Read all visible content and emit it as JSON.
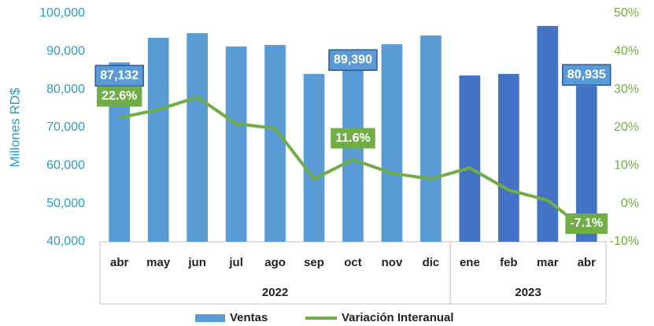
{
  "chart_data": {
    "type": "bar-line",
    "y_label": "Millones RD$",
    "category_groups": [
      {
        "name": "2022",
        "categories": [
          "abr",
          "may",
          "jun",
          "jul",
          "ago",
          "sep",
          "oct",
          "nov",
          "dic"
        ],
        "color": "#5b9bd5"
      },
      {
        "name": "2023",
        "categories": [
          "ene",
          "feb",
          "mar",
          "abr"
        ],
        "color": "#4472c4"
      }
    ],
    "series": [
      {
        "name": "Ventas",
        "type": "bar",
        "color": "#5b9bd5",
        "values": [
          87132,
          93600,
          94800,
          91300,
          91700,
          84100,
          89390,
          91900,
          94200,
          83700,
          84100,
          96700,
          80935
        ],
        "value_labels": [
          "87,132",
          null,
          null,
          null,
          null,
          null,
          "89,390",
          null,
          null,
          null,
          null,
          null,
          "80,935"
        ]
      },
      {
        "name": "Variación Interanual",
        "type": "line",
        "axis": "y2",
        "color": "#70ad47",
        "values": [
          22.6,
          24.7,
          28.0,
          21.0,
          19.8,
          6.5,
          11.6,
          8.0,
          6.5,
          9.4,
          3.6,
          0.9,
          -7.1
        ],
        "value_labels": [
          "22.6%",
          null,
          null,
          null,
          null,
          null,
          "11.6%",
          null,
          null,
          null,
          null,
          null,
          "-7.1%"
        ]
      }
    ],
    "ylim": [
      40000,
      100000
    ],
    "yticks": [
      {
        "value": 40000,
        "label": "40,000"
      },
      {
        "value": 50000,
        "label": "50,000"
      },
      {
        "value": 60000,
        "label": "60,000"
      },
      {
        "value": 70000,
        "label": "70,000"
      },
      {
        "value": 80000,
        "label": "80,000"
      },
      {
        "value": 90000,
        "label": "90,000"
      },
      {
        "value": 100000,
        "label": "100,000"
      }
    ],
    "y2lim": [
      -10,
      50
    ],
    "y2ticks": [
      {
        "value": -10,
        "label": "-10%"
      },
      {
        "value": 0,
        "label": "0%"
      },
      {
        "value": 10,
        "label": "10%"
      },
      {
        "value": 20,
        "label": "20%"
      },
      {
        "value": 30,
        "label": "30%"
      },
      {
        "value": 40,
        "label": "40%"
      },
      {
        "value": 50,
        "label": "50%"
      }
    ],
    "legend": "bottom"
  }
}
